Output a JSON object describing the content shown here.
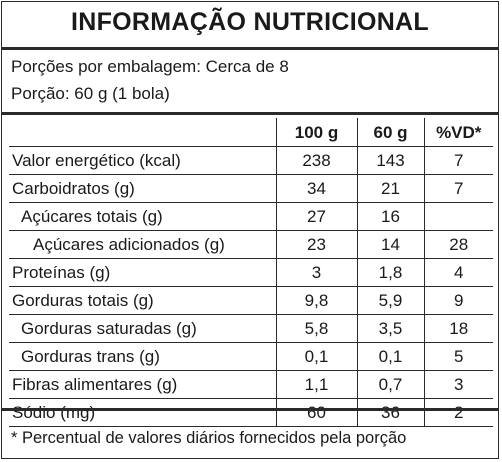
{
  "title": "INFORMAÇÃO NUTRICIONAL",
  "servings": {
    "per_package": "Porções por embalagem: Cerca de 8",
    "portion": "Porção: 60 g (1 bola)"
  },
  "table": {
    "headers": [
      "",
      "100 g",
      "60 g",
      "%VD*"
    ],
    "rows": [
      {
        "label": "Valor energético (kcal)",
        "level": 0,
        "values": [
          "238",
          "143",
          "7"
        ]
      },
      {
        "label": "Carboidratos (g)",
        "level": 0,
        "values": [
          "34",
          "21",
          "7"
        ]
      },
      {
        "label": "Açúcares totais (g)",
        "level": 1,
        "values": [
          "27",
          "16",
          ""
        ]
      },
      {
        "label": "Açúcares adicionados (g)",
        "level": 2,
        "values": [
          "23",
          "14",
          "28"
        ]
      },
      {
        "label": "Proteínas (g)",
        "level": 0,
        "values": [
          "3",
          "1,8",
          "4"
        ]
      },
      {
        "label": "Gorduras totais (g)",
        "level": 0,
        "values": [
          "9,8",
          "5,9",
          "9"
        ]
      },
      {
        "label": "Gorduras saturadas (g)",
        "level": 1,
        "values": [
          "5,8",
          "3,5",
          "18"
        ]
      },
      {
        "label": "Gorduras trans (g)",
        "level": 1,
        "values": [
          "0,1",
          "0,1",
          "5"
        ]
      },
      {
        "label": "Fibras alimentares (g)",
        "level": 0,
        "values": [
          "1,1",
          "0,7",
          "3"
        ]
      },
      {
        "label": "Sódio (mg)",
        "level": 0,
        "values": [
          "60",
          "36",
          "2"
        ]
      }
    ]
  },
  "footnote": "* Percentual de valores diários fornecidos pela porção"
}
